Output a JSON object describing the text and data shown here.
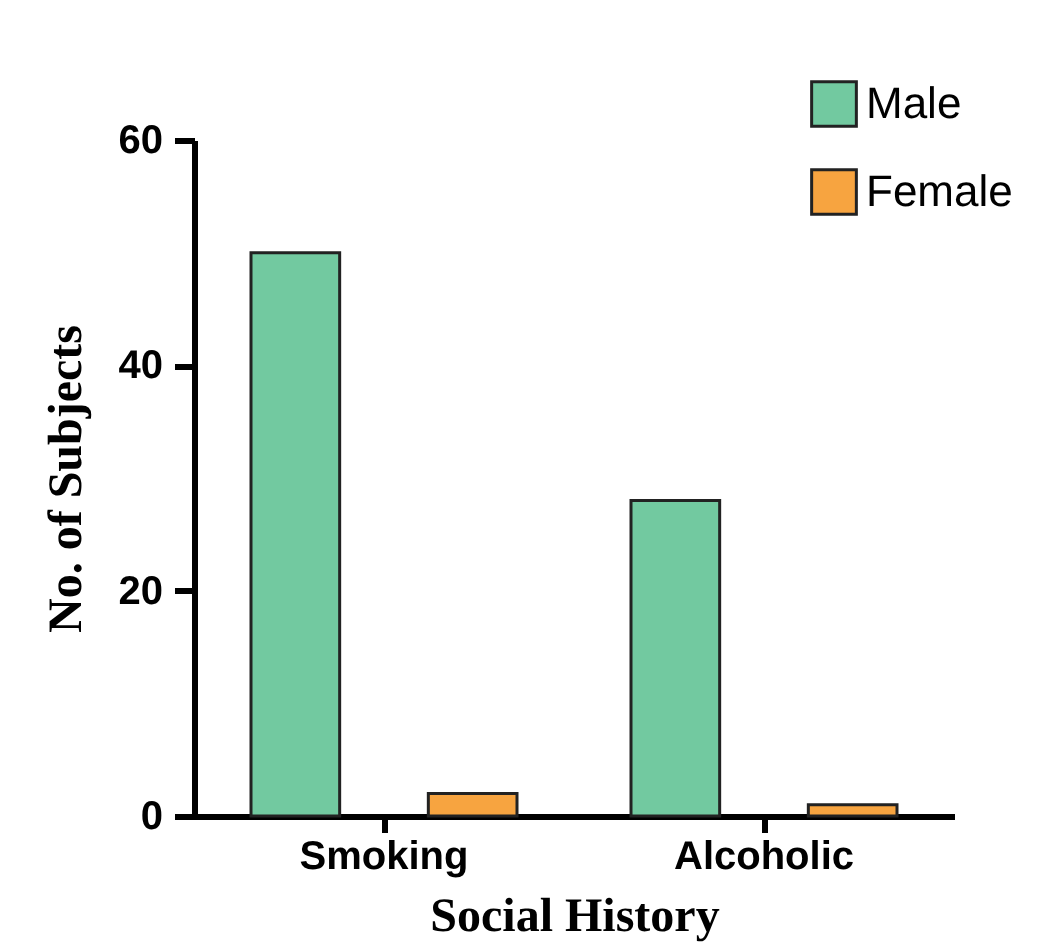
{
  "chart_data": {
    "type": "bar",
    "xlabel": "Social History",
    "ylabel": "No. of Subjects",
    "categories": [
      "Smoking",
      "Alcoholic"
    ],
    "series": [
      {
        "name": "Male",
        "color": "#72c9a0",
        "values": [
          50,
          28
        ]
      },
      {
        "name": "Female",
        "color": "#f7a440",
        "values": [
          2,
          1
        ]
      }
    ],
    "ylim": [
      0,
      60
    ],
    "yticks": [
      0,
      20,
      40,
      60
    ],
    "grid": false,
    "legend": "top right"
  }
}
